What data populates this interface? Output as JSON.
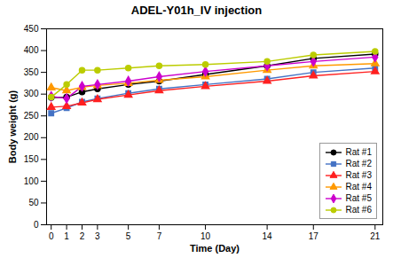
{
  "chart_data": {
    "type": "line",
    "title": "ADEL-Y01h_IV injection",
    "x_label": "Time (Day)",
    "y_label": "Body weight (g)",
    "x": [
      0,
      1,
      2,
      3,
      5,
      7,
      10,
      14,
      17,
      21
    ],
    "series": [
      {
        "name": "Rat #1",
        "color": "#000000",
        "marker": "circle",
        "values": [
          292,
          293,
          305,
          312,
          322,
          330,
          345,
          365,
          382,
          392
        ]
      },
      {
        "name": "Rat #2",
        "color": "#4472C4",
        "marker": "square",
        "values": [
          256,
          268,
          282,
          290,
          302,
          312,
          322,
          335,
          350,
          360
        ]
      },
      {
        "name": "Rat #3",
        "color": "#FF2020",
        "marker": "triangle",
        "values": [
          270,
          272,
          280,
          288,
          298,
          308,
          318,
          330,
          342,
          352
        ]
      },
      {
        "name": "Rat #4",
        "color": "#FF9900",
        "marker": "triangle",
        "values": [
          315,
          308,
          316,
          320,
          325,
          332,
          340,
          355,
          365,
          370
        ]
      },
      {
        "name": "Rat #5",
        "color": "#CC00CC",
        "marker": "diamond",
        "values": [
          295,
          290,
          318,
          322,
          330,
          340,
          352,
          365,
          375,
          385
        ]
      },
      {
        "name": "Rat #6",
        "color": "#BBCC00",
        "marker": "circle",
        "values": [
          293,
          322,
          355,
          355,
          360,
          365,
          368,
          375,
          390,
          398
        ]
      }
    ],
    "xlim": [
      -0.3,
      21.5
    ],
    "xticks": [
      0,
      1,
      2,
      3,
      5,
      7,
      10,
      14,
      17,
      21
    ],
    "ylim": [
      0,
      450
    ],
    "yticks": [
      0,
      50,
      100,
      150,
      200,
      250,
      300,
      350,
      400,
      450
    ],
    "grid": false,
    "legend": "lower right"
  }
}
